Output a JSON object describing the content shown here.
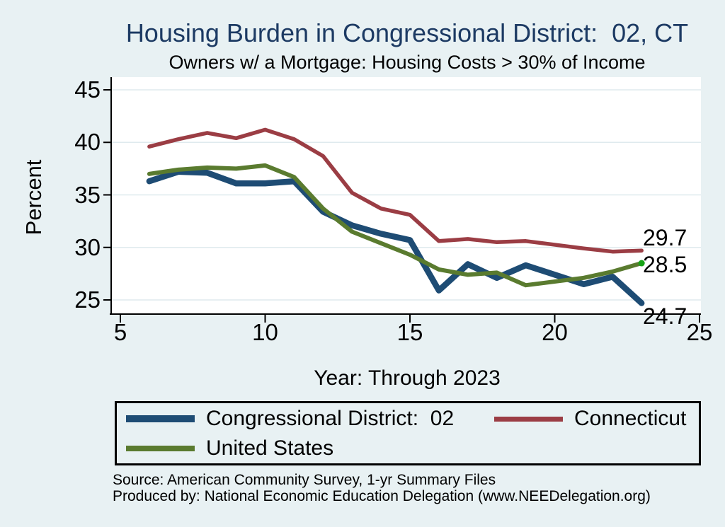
{
  "title": "Housing Burden in Congressional District:  02, CT",
  "subtitle": "Owners w/ a Mortgage: Housing Costs > 30% of Income",
  "notes": [
    "Source: American Community Survey, 1-yr Summary Files",
    "Produced by: National Economic Education Delegation (www.NEEDelegation.org)"
  ],
  "colors": {
    "background": "#e8f1f3",
    "plot_background": "#ffffff",
    "gridline": "#dfeaee",
    "axis": "#000000",
    "title_text": "#1c3a63",
    "district_line": "#1e4c74",
    "state_line": "#9b3d44",
    "us_line": "#5a7b2f",
    "us_end_dot": "#17a317"
  },
  "chart_data": {
    "type": "line",
    "title": "Housing Burden in Congressional District:  02, CT",
    "subtitle": "Owners w/ a Mortgage: Housing Costs > 30% of Income",
    "xlabel": "Year: Through 2023",
    "ylabel": "Percent",
    "xlim": [
      4.7,
      25.5
    ],
    "ylim": [
      23.8,
      46.2
    ],
    "xticks": [
      5,
      10,
      15,
      20,
      25
    ],
    "yticks": [
      25,
      30,
      35,
      40,
      45
    ],
    "grid": "horizontal",
    "legend_position": "bottom",
    "x": [
      6,
      7,
      8,
      9,
      10,
      11,
      12,
      13,
      14,
      15,
      16,
      17,
      18,
      19,
      21,
      22,
      23
    ],
    "series": [
      {
        "name": "Congressional District:  02",
        "color": "#1e4c74",
        "line_width": 8.5,
        "values": [
          36.3,
          37.2,
          37.1,
          36.1,
          36.1,
          36.3,
          33.4,
          32.1,
          31.3,
          30.7,
          25.9,
          28.4,
          27.1,
          28.3,
          26.5,
          27.2,
          24.7
        ],
        "end_label": "24.7",
        "end_label_dy": 19
      },
      {
        "name": "Connecticut",
        "color": "#9b3d44",
        "line_width": 5.5,
        "values": [
          39.6,
          40.3,
          40.9,
          40.4,
          41.2,
          40.3,
          38.7,
          35.2,
          33.7,
          33.1,
          30.6,
          30.8,
          30.5,
          30.6,
          29.9,
          29.6,
          29.7
        ],
        "end_label": "29.7",
        "end_label_dy": -18
      },
      {
        "name": "United States",
        "color": "#5a7b2f",
        "line_width": 6,
        "values": [
          37.0,
          37.4,
          37.6,
          37.5,
          37.8,
          36.7,
          33.7,
          31.5,
          30.4,
          29.3,
          27.9,
          27.4,
          27.6,
          26.4,
          27.1,
          27.7,
          28.5
        ],
        "end_label": "28.5",
        "end_label_dy": 2,
        "end_dot_color": "#17a317"
      }
    ]
  },
  "legend": {
    "items": [
      {
        "label": "Congressional District:  02",
        "series": 0
      },
      {
        "label": "Connecticut",
        "series": 1
      },
      {
        "label": "United States",
        "series": 2
      }
    ]
  }
}
